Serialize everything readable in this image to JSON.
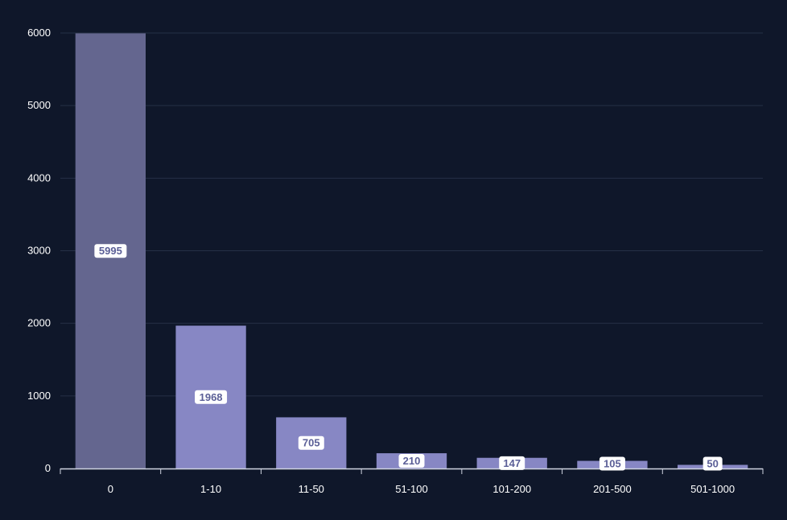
{
  "colors": {
    "background": "#0f172a",
    "grid": "#263046",
    "axis": "#cfd4e0",
    "bar_primary": "#64668f",
    "bar_secondary": "#8787c4",
    "label_box": "#ffffff",
    "label_text": "#5b5f97"
  },
  "chart_data": {
    "type": "bar",
    "categories": [
      "0",
      "1-10",
      "11-50",
      "51-100",
      "101-200",
      "201-500",
      "501-1000"
    ],
    "values": [
      5995,
      1968,
      705,
      210,
      147,
      105,
      50
    ],
    "data_labels": [
      "5995",
      "1968",
      "705",
      "210",
      "147",
      "105",
      "50"
    ],
    "title": "",
    "xlabel": "",
    "ylabel": "",
    "ylim": [
      0,
      6000
    ],
    "yticks": [
      0,
      1000,
      2000,
      3000,
      4000,
      5000,
      6000
    ],
    "ytick_labels": [
      "0",
      "1000",
      "2000",
      "3000",
      "4000",
      "5000",
      "6000"
    ],
    "grid": true,
    "legend": "none"
  }
}
